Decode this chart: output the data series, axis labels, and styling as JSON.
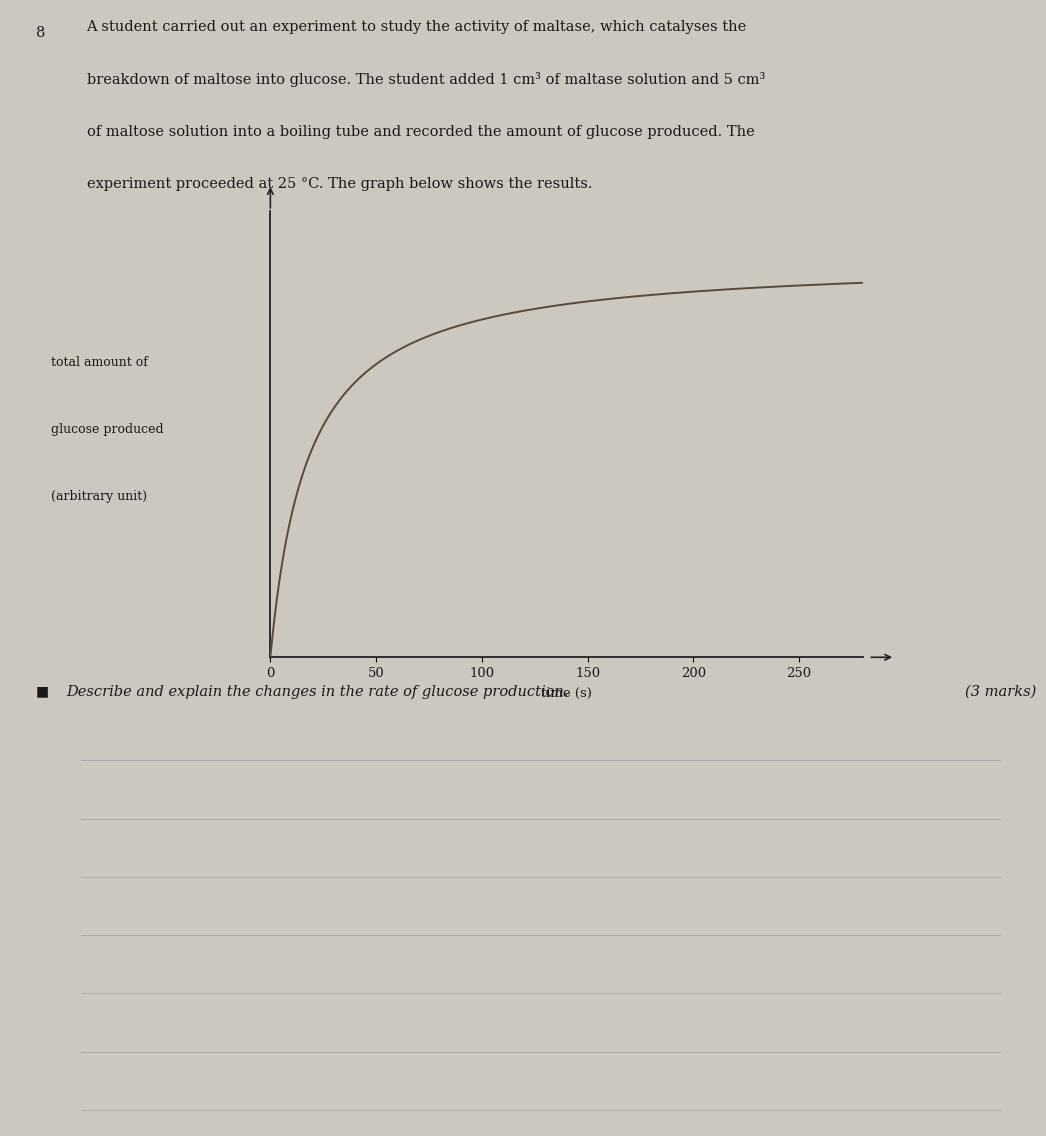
{
  "background_color": "#ccc8c0",
  "question_number": "8",
  "question_line1": "A student carried out an experiment to study the activity of maltase, which catalyses the",
  "question_line2": "breakdown of maltose into glucose. The student added 1 cm³ of maltase solution and 5 cm³",
  "question_line3": "of maltose solution into a boiling tube and recorded the amount of glucose produced. The",
  "question_line4": "experiment proceeded at 25 °C. The graph below shows the results.",
  "ylabel_line1": "total amount of",
  "ylabel_line2": "glucose produced",
  "ylabel_line3": "(arbitrary unit)",
  "xlabel": "time (s)",
  "xticks": [
    0,
    50,
    100,
    150,
    200,
    250
  ],
  "xlim": [
    0,
    280
  ],
  "ylim": [
    0,
    1.12
  ],
  "curve_color": "#5a4a3a",
  "curve_linewidth": 1.4,
  "axis_color": "#222222",
  "km": 18.0,
  "vmax": 1.0,
  "question2_bullet": "■",
  "question2_text": "Describe and explain the changes in the rate of glucose production.",
  "marks_text": "(3 marks)",
  "answer_lines": 7,
  "answer_line_color": "#aaaaaa",
  "text_color": "#1a1a1a",
  "question_fontsize": 10.5,
  "axis_label_fontsize": 9.5,
  "tick_fontsize": 9.5
}
